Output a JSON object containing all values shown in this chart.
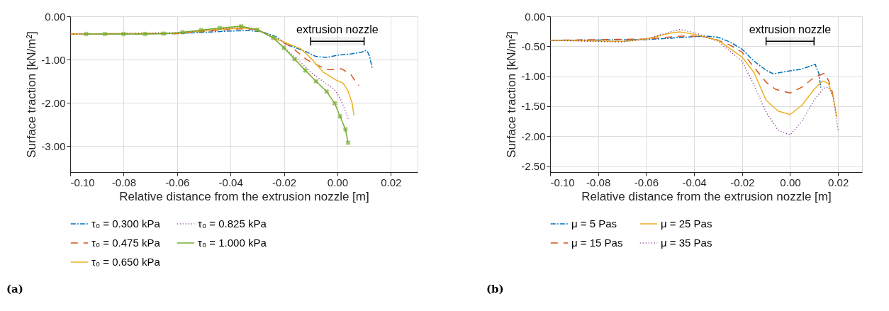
{
  "chart_data": [
    {
      "type": "line",
      "xlabel": "Relative distance from the extrusion nozzle [m]",
      "ylabel": "Surface traction [kN/m²]",
      "xlim": [
        -0.1,
        0.03
      ],
      "xticks": [
        {
          "value": -0.1,
          "label": "-0.10"
        },
        {
          "value": -0.08,
          "label": "-0.08"
        },
        {
          "value": -0.06,
          "label": "-0.06"
        },
        {
          "value": -0.04,
          "label": "-0.04"
        },
        {
          "value": -0.02,
          "label": "-0.02"
        },
        {
          "value": 0,
          "label": "0.00"
        },
        {
          "value": 0.02,
          "label": "0.02"
        }
      ],
      "ylim": [
        -3.6,
        0
      ],
      "yticks": [
        {
          "value": -3,
          "label": "-3.00"
        },
        {
          "value": -2,
          "label": "-2.00"
        },
        {
          "value": -1,
          "label": "-1.00"
        },
        {
          "value": 0,
          "label": "0.00"
        }
      ],
      "grid": true,
      "legend": "bottom",
      "annotations": [
        "(a)"
      ],
      "bands": [
        {
          "axis": "x",
          "from": -0.01,
          "to": 0.01,
          "label": "extrusion nozzle",
          "color": "#000000"
        }
      ],
      "series": [
        {
          "name": "τ₀ = 0.300 kPa",
          "color": "#0072bd",
          "line_style": "dashdot",
          "x": [
            -0.1,
            -0.06,
            -0.04,
            -0.033,
            -0.028,
            -0.023,
            -0.019,
            -0.012,
            -0.008,
            -0.004,
            0.0,
            0.005,
            0.009,
            0.0105,
            0.0113,
            0.012,
            0.013
          ],
          "values": [
            -0.41,
            -0.4,
            -0.34,
            -0.33,
            -0.36,
            -0.47,
            -0.65,
            -0.81,
            -0.93,
            -0.95,
            -0.9,
            -0.87,
            -0.83,
            -0.79,
            -0.82,
            -0.92,
            -1.19
          ]
        },
        {
          "name": "τ₀ = 0.475 kPa",
          "color": "#d95319",
          "line_style": "dashed",
          "x": [
            -0.1,
            -0.06,
            -0.04,
            -0.035,
            -0.03,
            -0.024,
            -0.0177,
            -0.0115,
            -0.0071,
            -0.0036,
            0.0,
            0.0014,
            0.005,
            0.0073,
            0.0081
          ],
          "values": [
            -0.41,
            -0.4,
            -0.3,
            -0.29,
            -0.31,
            -0.49,
            -0.69,
            -1.0,
            -1.14,
            -1.23,
            -1.23,
            -1.21,
            -1.34,
            -1.55,
            -1.6
          ]
        },
        {
          "name": "τ₀ = 0.650 kPa",
          "color": "#edb120",
          "line_style": "solid",
          "x": [
            -0.1,
            -0.06,
            -0.044,
            -0.036,
            -0.03,
            -0.024,
            -0.0137,
            -0.0099,
            -0.0051,
            0.0,
            0.0021,
            0.004,
            0.0055,
            0.0062
          ],
          "values": [
            -0.41,
            -0.39,
            -0.3,
            -0.27,
            -0.3,
            -0.49,
            -0.75,
            -0.97,
            -1.3,
            -1.49,
            -1.54,
            -1.73,
            -2.0,
            -2.29
          ]
        },
        {
          "name": "τ₀ = 0.825 kPa",
          "color": "#7e2f8e",
          "line_style": "dotted",
          "x": [
            -0.1,
            -0.06,
            -0.044,
            -0.036,
            -0.03,
            -0.024,
            -0.0143,
            -0.0099,
            -0.0046,
            -0.0012,
            0.0011,
            0.0027,
            0.0043
          ],
          "values": [
            -0.41,
            -0.38,
            -0.29,
            -0.25,
            -0.3,
            -0.5,
            -1.03,
            -1.3,
            -1.54,
            -1.68,
            -1.9,
            -2.14,
            -2.41
          ]
        },
        {
          "name": "τ₀ = 1.000 kPa",
          "color": "#77ac30",
          "line_style": "solid",
          "marker": "cross",
          "x": [
            -0.094,
            -0.087,
            -0.08,
            -0.072,
            -0.065,
            -0.058,
            -0.051,
            -0.044,
            -0.036,
            -0.03,
            -0.024,
            -0.02,
            -0.016,
            -0.012,
            -0.008,
            -0.004,
            -0.001,
            0.001,
            0.003,
            0.004
          ],
          "values": [
            -0.41,
            -0.41,
            -0.41,
            -0.41,
            -0.4,
            -0.37,
            -0.32,
            -0.27,
            -0.23,
            -0.31,
            -0.5,
            -0.73,
            -0.99,
            -1.25,
            -1.5,
            -1.74,
            -2.01,
            -2.31,
            -2.61,
            -2.92
          ]
        }
      ]
    },
    {
      "type": "line",
      "xlabel": "Relative distance from the extrusion nozzle [m]",
      "ylabel": "Surface traction [kN/m²]",
      "xlim": [
        -0.1,
        0.03
      ],
      "xticks": [
        {
          "value": -0.1,
          "label": "-0.10"
        },
        {
          "value": -0.08,
          "label": "-0.08"
        },
        {
          "value": -0.06,
          "label": "-0.06"
        },
        {
          "value": -0.04,
          "label": "-0.04"
        },
        {
          "value": -0.02,
          "label": "-0.02"
        },
        {
          "value": 0,
          "label": "0.00"
        },
        {
          "value": 0.02,
          "label": "0.02"
        }
      ],
      "ylim": [
        -2.6,
        0
      ],
      "yticks": [
        {
          "value": -2.5,
          "label": "-2.50"
        },
        {
          "value": -2,
          "label": "-2.00"
        },
        {
          "value": -1.5,
          "label": "-1.50"
        },
        {
          "value": -1,
          "label": "-1.00"
        },
        {
          "value": -0.5,
          "label": "-0.50"
        },
        {
          "value": 0,
          "label": "0.00"
        }
      ],
      "grid": true,
      "legend": "bottom",
      "annotations": [
        "(b)"
      ],
      "bands": [
        {
          "axis": "x",
          "from": -0.01,
          "to": 0.01,
          "label": "extrusion nozzle",
          "color": "#000000"
        }
      ],
      "series": [
        {
          "name": "μ = 5 Pas",
          "color": "#0072bd",
          "line_style": "dashdot",
          "x": [
            -0.1,
            -0.06,
            -0.04,
            -0.035,
            -0.03,
            -0.025,
            -0.02,
            -0.015,
            -0.01,
            -0.007,
            -0.003,
            0.0,
            0.005,
            0.009,
            0.0105,
            0.011,
            0.012,
            0.0128
          ],
          "values": [
            -0.4,
            -0.39,
            -0.34,
            -0.33,
            -0.35,
            -0.43,
            -0.55,
            -0.75,
            -0.9,
            -0.96,
            -0.93,
            -0.91,
            -0.88,
            -0.82,
            -0.8,
            -0.86,
            -0.95,
            -1.19
          ]
        },
        {
          "name": "μ = 15 Pas",
          "color": "#d95319",
          "line_style": "dashed",
          "x": [
            -0.1,
            -0.06,
            -0.045,
            -0.04,
            -0.035,
            -0.03,
            -0.025,
            -0.02,
            -0.015,
            -0.01,
            -0.006,
            0.0,
            0.005,
            0.01,
            0.0144,
            0.0161,
            0.0175,
            0.018
          ],
          "values": [
            -0.4,
            -0.38,
            -0.33,
            -0.33,
            -0.35,
            -0.4,
            -0.48,
            -0.6,
            -0.85,
            -1.1,
            -1.22,
            -1.28,
            -1.18,
            -1.02,
            -0.95,
            -1.08,
            -1.25,
            -1.35
          ]
        },
        {
          "name": "μ = 25 Pas",
          "color": "#edb120",
          "line_style": "solid",
          "x": [
            -0.1,
            -0.07,
            -0.06,
            -0.05,
            -0.046,
            -0.04,
            -0.03,
            -0.02,
            -0.015,
            -0.01,
            -0.005,
            0.0,
            0.005,
            0.01,
            0.0135,
            0.016,
            0.018,
            0.0195
          ],
          "values": [
            -0.4,
            -0.42,
            -0.38,
            -0.28,
            -0.26,
            -0.3,
            -0.4,
            -0.68,
            -0.94,
            -1.4,
            -1.58,
            -1.64,
            -1.48,
            -1.22,
            -1.08,
            -1.12,
            -1.35,
            -1.68
          ]
        },
        {
          "name": "μ = 35 Pas",
          "color": "#7e2f8e",
          "line_style": "dotted",
          "x": [
            -0.1,
            -0.07,
            -0.06,
            -0.05,
            -0.046,
            -0.04,
            -0.03,
            -0.02,
            -0.015,
            -0.01,
            -0.005,
            0.0,
            0.005,
            0.01,
            0.014,
            0.016,
            0.018,
            0.02
          ],
          "values": [
            -0.4,
            -0.43,
            -0.38,
            -0.26,
            -0.22,
            -0.27,
            -0.42,
            -0.75,
            -1.15,
            -1.6,
            -1.9,
            -1.98,
            -1.75,
            -1.4,
            -1.2,
            -1.18,
            -1.35,
            -1.9
          ]
        }
      ]
    }
  ]
}
